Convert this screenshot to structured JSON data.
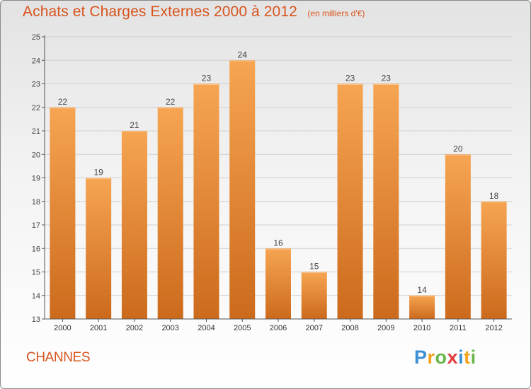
{
  "title": "Achats et Charges Externes 2000 à 2012",
  "unit": "(en milliers d'€)",
  "commune": "CHANNES",
  "logo": {
    "letters": [
      "P",
      "r",
      "o",
      "x",
      "i",
      "t",
      "i"
    ],
    "colors": [
      "#3a8fd6",
      "#f2a31b",
      "#6ab64a",
      "#e23b3b",
      "#3a8fd6",
      "#f2a31b",
      "#6ab64a"
    ]
  },
  "colors": {
    "title": "#d8541e",
    "bar_top": "#f6a552",
    "bar_bottom": "#cc6a1c",
    "grid": "#d0d0d0"
  },
  "chart_data": {
    "type": "bar",
    "categories": [
      "2000",
      "2001",
      "2002",
      "2003",
      "2004",
      "2005",
      "2006",
      "2007",
      "2008",
      "2009",
      "2010",
      "2011",
      "2012"
    ],
    "values": [
      22,
      19,
      21,
      22,
      23,
      24,
      16,
      15,
      23,
      23,
      14,
      20,
      18
    ],
    "ylim": [
      13,
      25
    ],
    "yticks": [
      13,
      14,
      15,
      16,
      17,
      18,
      19,
      20,
      21,
      22,
      23,
      24,
      25
    ],
    "grid": true
  }
}
